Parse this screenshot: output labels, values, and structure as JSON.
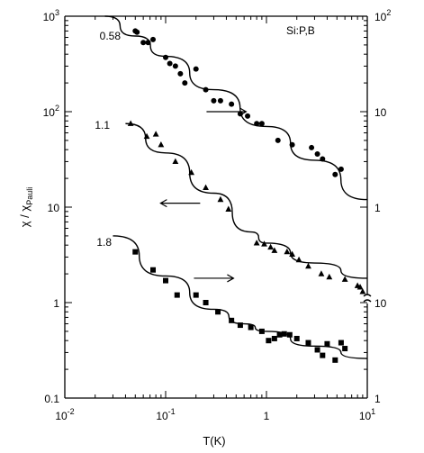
{
  "chart_data": {
    "type": "scatter",
    "title": "",
    "xlabel": "T(K)",
    "ylabel_main": "χ / χ",
    "ylabel_sub": "Pauli",
    "annotation": "Si:P,B",
    "x_scale": "log",
    "y_scale": "log",
    "xlim": [
      0.01,
      10
    ],
    "ylim_left": [
      0.1,
      1000
    ],
    "x_ticks": [
      {
        "base": "10",
        "exp": "-2"
      },
      {
        "base": "10",
        "exp": "-1"
      },
      {
        "base": "1",
        "exp": ""
      },
      {
        "base": "10",
        "exp": "1"
      }
    ],
    "left_ticks": [
      {
        "base": "10",
        "exp": "3"
      },
      {
        "base": "10",
        "exp": "2"
      },
      {
        "base": "10",
        "exp": ""
      },
      {
        "base": "1",
        "exp": ""
      },
      {
        "base": "0.1",
        "exp": ""
      }
    ],
    "right_ticks_upper": [
      {
        "base": "10",
        "exp": "2"
      },
      {
        "base": "10",
        "exp": ""
      },
      {
        "base": "1",
        "exp": ""
      }
    ],
    "right_ticks_lower": [
      {
        "base": "10",
        "exp": ""
      },
      {
        "base": "1",
        "exp": ""
      }
    ],
    "series": [
      {
        "name": "0.58",
        "marker": "circle",
        "axis": "right",
        "points": [
          [
            0.05,
            700
          ],
          [
            0.052,
            680
          ],
          [
            0.06,
            530
          ],
          [
            0.067,
            530
          ],
          [
            0.075,
            570
          ],
          [
            0.1,
            370
          ],
          [
            0.11,
            320
          ],
          [
            0.125,
            300
          ],
          [
            0.14,
            250
          ],
          [
            0.155,
            200
          ],
          [
            0.2,
            280
          ],
          [
            0.25,
            170
          ],
          [
            0.3,
            130
          ],
          [
            0.35,
            130
          ],
          [
            0.45,
            120
          ],
          [
            0.55,
            95
          ],
          [
            0.65,
            90
          ],
          [
            0.8,
            75
          ],
          [
            0.9,
            75
          ],
          [
            1.3,
            50
          ],
          [
            1.8,
            45
          ],
          [
            2.8,
            42
          ],
          [
            3.2,
            36
          ],
          [
            3.6,
            32
          ],
          [
            4.8,
            22
          ],
          [
            5.5,
            25
          ]
        ],
        "fit": [
          [
            0.025,
            1000
          ],
          [
            0.05,
            620
          ],
          [
            0.1,
            380
          ],
          [
            0.3,
            170
          ],
          [
            1,
            70
          ],
          [
            3,
            31
          ],
          [
            10,
            12
          ]
        ]
      },
      {
        "name": "1.1",
        "marker": "triangle",
        "axis": "left",
        "points": [
          [
            0.045,
            75
          ],
          [
            0.065,
            55
          ],
          [
            0.08,
            58
          ],
          [
            0.09,
            45
          ],
          [
            0.125,
            30
          ],
          [
            0.18,
            23
          ],
          [
            0.25,
            16
          ],
          [
            0.35,
            12
          ],
          [
            0.42,
            9.5
          ],
          [
            0.8,
            4.2
          ],
          [
            0.95,
            4.1
          ],
          [
            1.1,
            3.8
          ],
          [
            1.2,
            3.5
          ],
          [
            1.6,
            3.4
          ],
          [
            1.8,
            3.2
          ],
          [
            2.1,
            2.8
          ],
          [
            2.6,
            2.4
          ],
          [
            3.5,
            2.0
          ],
          [
            4.2,
            1.85
          ],
          [
            6.0,
            1.75
          ],
          [
            8.0,
            1.5
          ],
          [
            8.5,
            1.45
          ],
          [
            9.0,
            1.3
          ]
        ],
        "fit": [
          [
            0.04,
            75
          ],
          [
            0.1,
            37
          ],
          [
            0.3,
            14
          ],
          [
            0.7,
            5.5
          ],
          [
            1,
            4.2
          ],
          [
            3,
            2.6
          ],
          [
            10,
            1.8
          ]
        ]
      },
      {
        "name": "1.8",
        "marker": "square",
        "axis": "left",
        "points": [
          [
            0.05,
            3.4
          ],
          [
            0.075,
            2.2
          ],
          [
            0.1,
            1.7
          ],
          [
            0.13,
            1.2
          ],
          [
            0.2,
            1.2
          ],
          [
            0.25,
            1.0
          ],
          [
            0.33,
            0.8
          ],
          [
            0.45,
            0.65
          ],
          [
            0.55,
            0.58
          ],
          [
            0.7,
            0.55
          ],
          [
            0.9,
            0.5
          ],
          [
            1.05,
            0.4
          ],
          [
            1.2,
            0.42
          ],
          [
            1.35,
            0.46
          ],
          [
            1.5,
            0.47
          ],
          [
            1.7,
            0.46
          ],
          [
            2.0,
            0.42
          ],
          [
            2.6,
            0.38
          ],
          [
            3.2,
            0.32
          ],
          [
            3.6,
            0.28
          ],
          [
            4.0,
            0.37
          ],
          [
            4.8,
            0.25
          ],
          [
            5.5,
            0.38
          ],
          [
            6.0,
            0.33
          ]
        ],
        "fit": [
          [
            0.03,
            5.0
          ],
          [
            0.1,
            1.9
          ],
          [
            0.3,
            0.85
          ],
          [
            0.6,
            0.6
          ],
          [
            1,
            0.5
          ],
          [
            3,
            0.35
          ],
          [
            10,
            0.26
          ]
        ]
      }
    ],
    "arrows": [
      {
        "direction": "right",
        "at": [
          0.4,
          100
        ]
      },
      {
        "direction": "left",
        "at": [
          0.14,
          11
        ]
      },
      {
        "direction": "right",
        "at": [
          0.3,
          1.8
        ]
      }
    ],
    "legend": "none",
    "grid": false
  }
}
